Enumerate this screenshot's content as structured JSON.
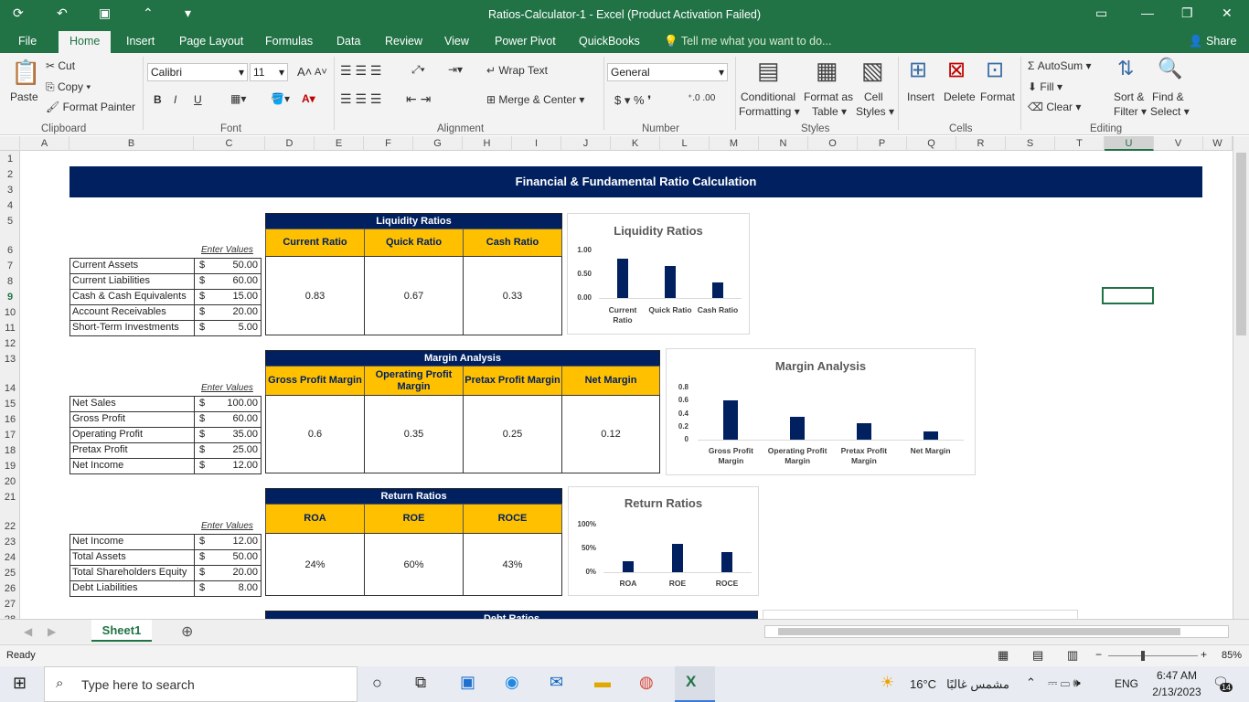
{
  "window": {
    "title": "Ratios-Calculator-1 - Excel (Product Activation Failed)"
  },
  "tabs": [
    "File",
    "Home",
    "Insert",
    "Page Layout",
    "Formulas",
    "Data",
    "Review",
    "View",
    "Power Pivot",
    "QuickBooks"
  ],
  "tell_me": "Tell me what you want to do...",
  "share": "Share",
  "ribbon": {
    "clipboard": {
      "paste": "Paste",
      "cut": "Cut",
      "copy": "Copy",
      "format_painter": "Format Painter",
      "group": "Clipboard"
    },
    "font": {
      "name": "Calibri",
      "size": "11",
      "group": "Font",
      "bold": "B",
      "italic": "I",
      "underline": "U"
    },
    "alignment": {
      "wrap": "Wrap Text",
      "merge": "Merge & Center",
      "group": "Alignment"
    },
    "number": {
      "format": "General",
      "group": "Number"
    },
    "styles": {
      "conditional": "Conditional",
      "conditional2": "Formatting",
      "format_as": "Format as",
      "format_as2": "Table",
      "cell": "Cell",
      "cell2": "Styles",
      "group": "Styles"
    },
    "cells": {
      "insert": "Insert",
      "delete": "Delete",
      "format": "Format",
      "group": "Cells"
    },
    "editing": {
      "autosum": "AutoSum",
      "fill": "Fill",
      "clear": "Clear",
      "sort": "Sort &",
      "sort2": "Filter",
      "find": "Find &",
      "find2": "Select",
      "group": "Editing"
    }
  },
  "columns": [
    "A",
    "B",
    "C",
    "D",
    "E",
    "F",
    "G",
    "H",
    "I",
    "J",
    "K",
    "L",
    "M",
    "N",
    "O",
    "P",
    "Q",
    "R",
    "S",
    "T",
    "U",
    "V",
    "W"
  ],
  "rows": [
    "1",
    "2",
    "3",
    "4",
    "5",
    "6",
    "7",
    "8",
    "9",
    "10",
    "11",
    "12",
    "13",
    "14",
    "15",
    "16",
    "17",
    "18",
    "19",
    "20",
    "21",
    "22",
    "23",
    "24",
    "25",
    "26",
    "27",
    "28"
  ],
  "sheet": {
    "banner": "Financial & Fundamental Ratio Calculation",
    "enter_values": "Enter Values",
    "currency": "$",
    "liquidity": {
      "title": "Liquidity Ratios",
      "headers": [
        "Current Ratio",
        "Quick Ratio",
        "Cash Ratio"
      ],
      "values": [
        "0.83",
        "0.67",
        "0.33"
      ],
      "inputs": [
        {
          "label": "Current Assets",
          "value": "50.00"
        },
        {
          "label": "Current Liabilities",
          "value": "60.00"
        },
        {
          "label": "Cash & Cash Equivalents",
          "value": "15.00"
        },
        {
          "label": "Account Receivables",
          "value": "20.00"
        },
        {
          "label": "Short-Term Investments",
          "value": "5.00"
        }
      ]
    },
    "margin": {
      "title": "Margin Analysis",
      "headers": [
        "Gross Profit Margin",
        "Operating Profit Margin",
        "Pretax Profit Margin",
        "Net Margin"
      ],
      "values": [
        "0.6",
        "0.35",
        "0.25",
        "0.12"
      ],
      "inputs": [
        {
          "label": "Net Sales",
          "value": "100.00"
        },
        {
          "label": "Gross Profit",
          "value": "60.00"
        },
        {
          "label": "Operating Profit",
          "value": "35.00"
        },
        {
          "label": "Pretax Profit",
          "value": "25.00"
        },
        {
          "label": "Net Income",
          "value": "12.00"
        }
      ]
    },
    "returns": {
      "title": "Return Ratios",
      "headers": [
        "ROA",
        "ROE",
        "ROCE"
      ],
      "values": [
        "24%",
        "60%",
        "43%"
      ],
      "inputs": [
        {
          "label": "Net Income",
          "value": "12.00"
        },
        {
          "label": "Total Assets",
          "value": "50.00"
        },
        {
          "label": "Total Shareholders Equity",
          "value": "20.00"
        },
        {
          "label": "Debt Liabilities",
          "value": "8.00"
        }
      ]
    },
    "debt_title": "Debt Ratios"
  },
  "chart_data": [
    {
      "type": "bar",
      "title": "Liquidity Ratios",
      "categories": [
        "Current Ratio",
        "Quick Ratio",
        "Cash Ratio"
      ],
      "values": [
        0.83,
        0.67,
        0.33
      ],
      "ylim": [
        0,
        1
      ],
      "yticks": [
        "1.00",
        "0.50",
        "0.00"
      ]
    },
    {
      "type": "bar",
      "title": "Margin Analysis",
      "categories": [
        "Gross Profit Margin",
        "Operating Profit Margin",
        "Pretax Profit Margin",
        "Net Margin"
      ],
      "values": [
        0.6,
        0.35,
        0.25,
        0.12
      ],
      "ylim": [
        0,
        0.8
      ],
      "yticks": [
        "0.8",
        "0.6",
        "0.4",
        "0.2",
        "0"
      ]
    },
    {
      "type": "bar",
      "title": "Return Ratios",
      "categories": [
        "ROA",
        "ROE",
        "ROCE"
      ],
      "values": [
        0.24,
        0.6,
        0.43
      ],
      "ylim": [
        0,
        1
      ],
      "yticks": [
        "100%",
        "50%",
        "0%"
      ]
    }
  ],
  "sheet_tab": "Sheet1",
  "status": {
    "ready": "Ready",
    "zoom": "85%"
  },
  "taskbar": {
    "search": "Type here to search",
    "weather": "16°C",
    "weather_text": "مشمس غالبًا",
    "lang": "ENG",
    "time": "6:47 AM",
    "date": "2/13/2023",
    "notif": "14"
  },
  "colors": {
    "excel_green": "#217346",
    "navy": "#002060",
    "gold": "#ffc000"
  }
}
